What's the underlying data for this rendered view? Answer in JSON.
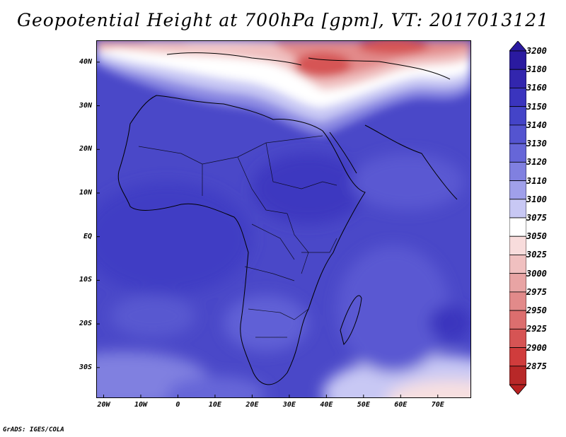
{
  "title": "Geopotential Height at 700hPa [gpm], VT: 2017013121",
  "footer": "GrADS: IGES/COLA",
  "map": {
    "region": "Africa",
    "lon_range": [
      -22,
      79
    ],
    "lat_range": [
      -37,
      45
    ],
    "lat_ticks": [
      {
        "value": 40,
        "label": "40N"
      },
      {
        "value": 30,
        "label": "30N"
      },
      {
        "value": 20,
        "label": "20N"
      },
      {
        "value": 10,
        "label": "10N"
      },
      {
        "value": 0,
        "label": "EQ"
      },
      {
        "value": -10,
        "label": "10S"
      },
      {
        "value": -20,
        "label": "20S"
      },
      {
        "value": -30,
        "label": "30S"
      }
    ],
    "lon_ticks": [
      {
        "value": -20,
        "label": "20W"
      },
      {
        "value": -10,
        "label": "10W"
      },
      {
        "value": 0,
        "label": "0"
      },
      {
        "value": 10,
        "label": "10E"
      },
      {
        "value": 20,
        "label": "20E"
      },
      {
        "value": 30,
        "label": "30E"
      },
      {
        "value": 40,
        "label": "40E"
      },
      {
        "value": 50,
        "label": "50E"
      },
      {
        "value": 60,
        "label": "60E"
      },
      {
        "value": 70,
        "label": "70E"
      }
    ]
  },
  "colorbar": {
    "levels": [
      {
        "label": "3200",
        "color": "#2a1aa0"
      },
      {
        "label": "3180",
        "color": "#3226ae"
      },
      {
        "label": "3160",
        "color": "#3a34be"
      },
      {
        "label": "3150",
        "color": "#4444c8"
      },
      {
        "label": "3140",
        "color": "#5454d0"
      },
      {
        "label": "3130",
        "color": "#6666d8"
      },
      {
        "label": "3120",
        "color": "#8080e0"
      },
      {
        "label": "3110",
        "color": "#a0a0ea"
      },
      {
        "label": "3100",
        "color": "#c8c8f4"
      },
      {
        "label": "3075",
        "color": "#ffffff"
      },
      {
        "label": "3050",
        "color": "#f8dcdc"
      },
      {
        "label": "3025",
        "color": "#f0c0c0"
      },
      {
        "label": "3000",
        "color": "#e8a4a4"
      },
      {
        "label": "2975",
        "color": "#e28a8a"
      },
      {
        "label": "2950",
        "color": "#dc6e6e"
      },
      {
        "label": "2925",
        "color": "#d65454"
      },
      {
        "label": "2900",
        "color": "#d03c3c"
      },
      {
        "label": "2875",
        "color": "#b82828"
      }
    ],
    "top_color": "#2a1aa0",
    "bottom_color": "#b82020"
  }
}
